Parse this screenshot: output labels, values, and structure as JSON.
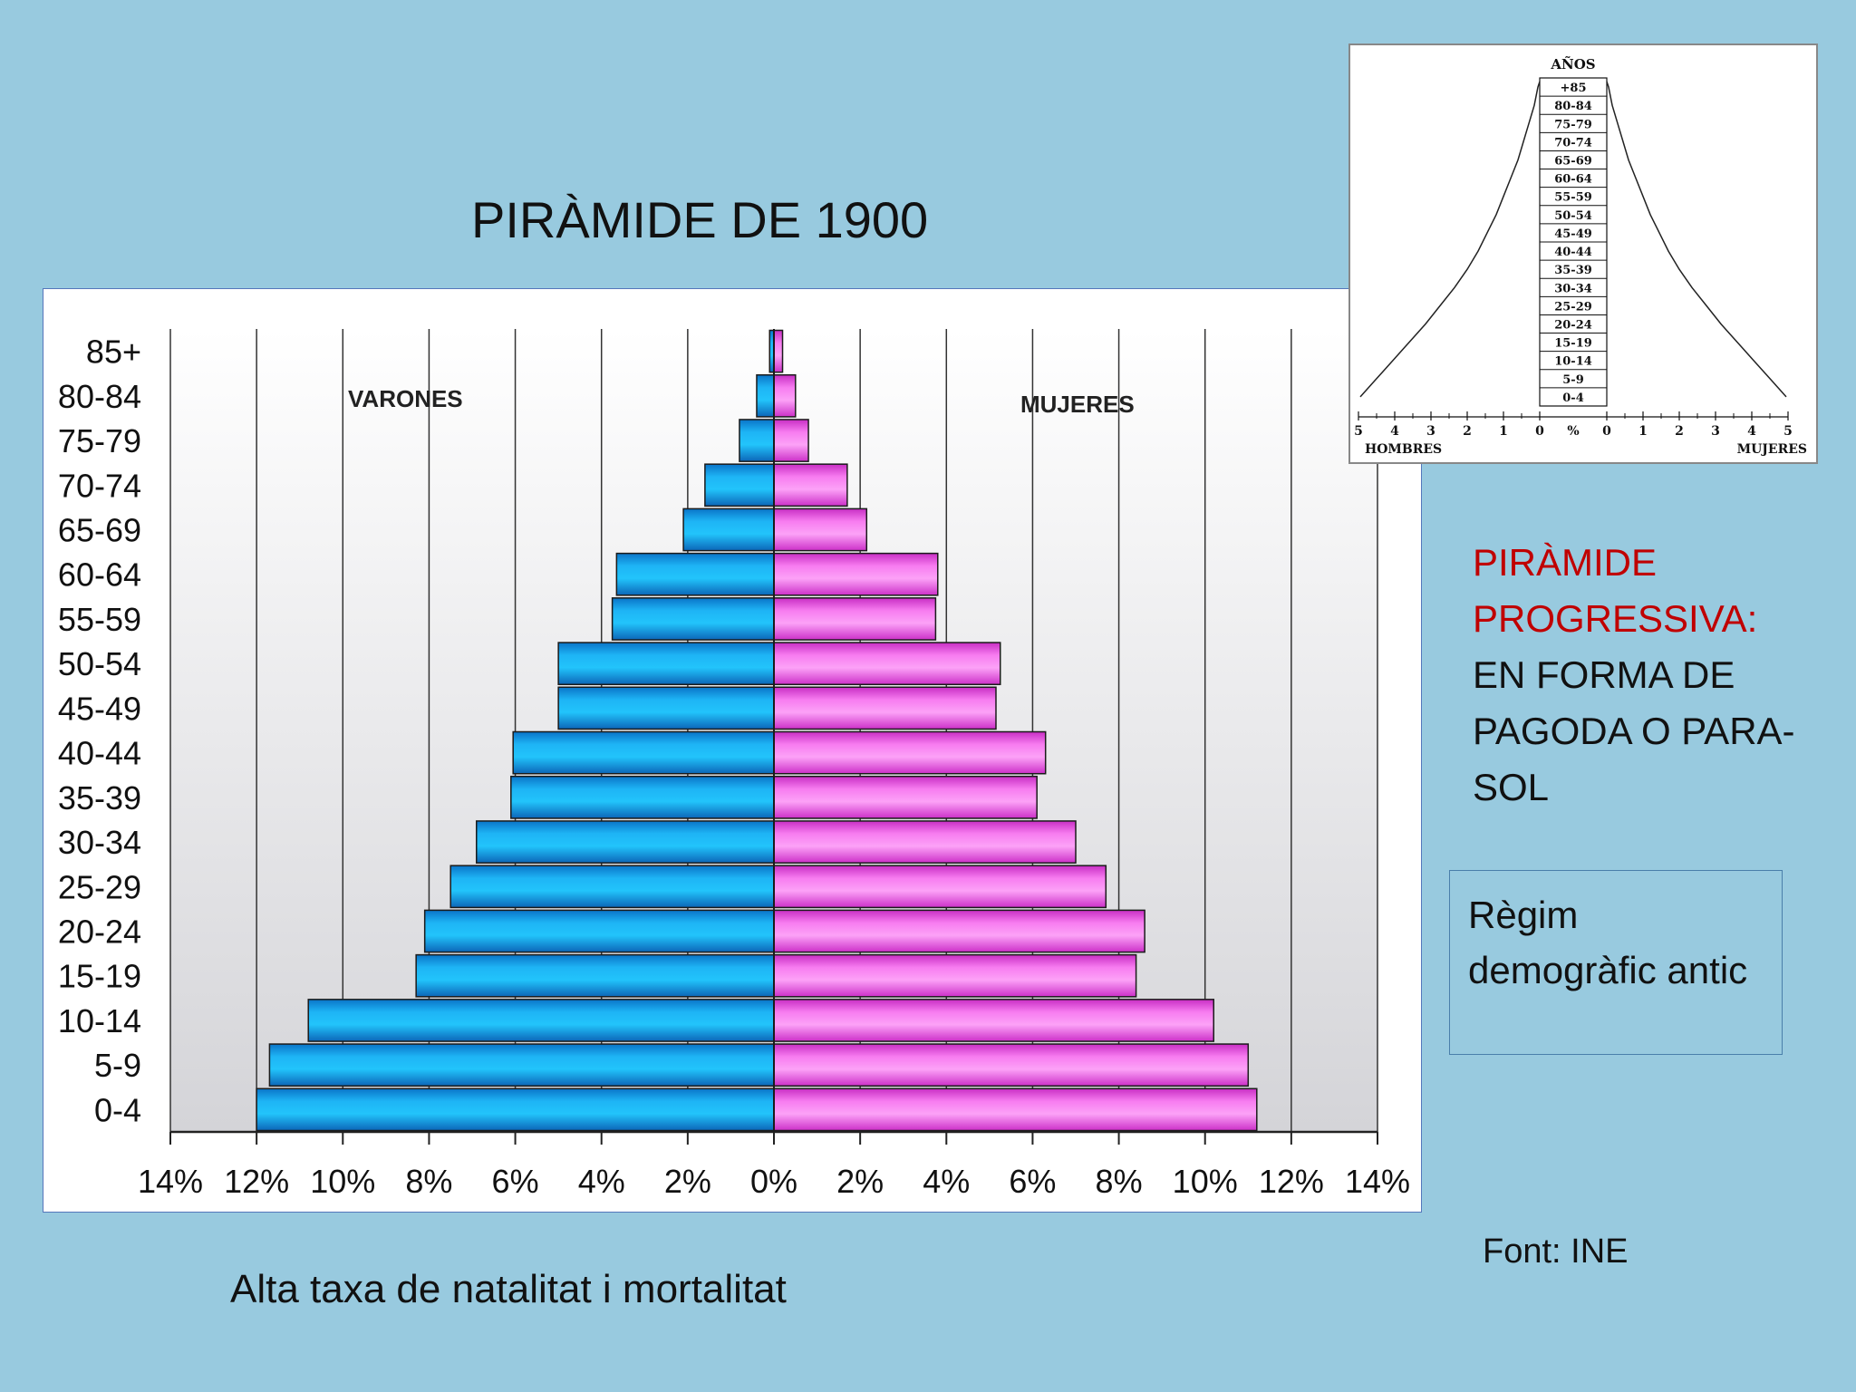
{
  "slide": {
    "title": "PIRÀMIDE DE 1900",
    "type_label_red": "PIRÀMIDE PROGRESSIVA:",
    "type_label_dark": "EN FORMA DE PAGODA O PARA-SOL",
    "regime_box": "Règim demogràfic antic",
    "source": "Font: INE",
    "caption": "Alta taxa de natalitat i mortalitat"
  },
  "colors": {
    "background": "#98cadf",
    "men_bar": "#1eb4f5",
    "women_bar": "#f77cf0",
    "accent_red": "#c00000"
  },
  "chart_data": [
    {
      "type": "bar",
      "orientation": "horizontal-population-pyramid",
      "categories": [
        "0-4",
        "5-9",
        "10-14",
        "15-19",
        "20-24",
        "25-29",
        "30-34",
        "35-39",
        "40-44",
        "45-49",
        "50-54",
        "55-59",
        "60-64",
        "65-69",
        "70-74",
        "75-79",
        "80-84",
        "85+"
      ],
      "series": [
        {
          "name": "VARONES",
          "values": [
            12.0,
            11.7,
            10.8,
            8.3,
            8.1,
            7.5,
            6.9,
            6.1,
            6.05,
            5.0,
            5.0,
            3.75,
            3.65,
            2.1,
            1.6,
            0.8,
            0.4,
            0.1
          ]
        },
        {
          "name": "MUJERES",
          "values": [
            11.2,
            11.0,
            10.2,
            8.4,
            8.6,
            7.7,
            7.0,
            6.1,
            6.3,
            5.15,
            5.25,
            3.75,
            3.8,
            2.15,
            1.7,
            0.8,
            0.5,
            0.2
          ]
        }
      ],
      "xlim": [
        -14,
        14
      ],
      "x_tick_labels": [
        "14%",
        "12%",
        "10%",
        "8%",
        "6%",
        "4%",
        "2%",
        "0%",
        "2%",
        "4%",
        "6%",
        "8%",
        "10%",
        "12%",
        "14%"
      ],
      "grid": true,
      "title": "",
      "xlabel": "",
      "ylabel": ""
    },
    {
      "type": "area",
      "orientation": "population-pyramid-outline",
      "y_title": "AÑOS",
      "categories": [
        "0-4",
        "5-9",
        "10-14",
        "15-19",
        "20-24",
        "25-29",
        "30-34",
        "35-39",
        "40-44",
        "45-49",
        "50-54",
        "55-59",
        "60-64",
        "65-69",
        "70-74",
        "75-79",
        "80-84",
        "+85"
      ],
      "series": [
        {
          "name": "HOMBRES",
          "values": [
            4.95,
            4.5,
            4.05,
            3.6,
            3.15,
            2.75,
            2.35,
            2.0,
            1.7,
            1.45,
            1.2,
            1.0,
            0.8,
            0.6,
            0.45,
            0.3,
            0.15,
            0.05
          ]
        },
        {
          "name": "MUJERES",
          "values": [
            4.95,
            4.5,
            4.05,
            3.6,
            3.15,
            2.75,
            2.35,
            2.0,
            1.7,
            1.45,
            1.2,
            1.0,
            0.8,
            0.6,
            0.45,
            0.3,
            0.15,
            0.05
          ]
        }
      ],
      "xlim": [
        -5,
        5
      ],
      "x_tick_labels": [
        "5",
        "4",
        "3",
        "2",
        "1",
        "0",
        "%",
        "0",
        "1",
        "2",
        "3",
        "4",
        "5"
      ],
      "xlabel_left": "HOMBRES",
      "xlabel_right": "MUJERES"
    }
  ]
}
